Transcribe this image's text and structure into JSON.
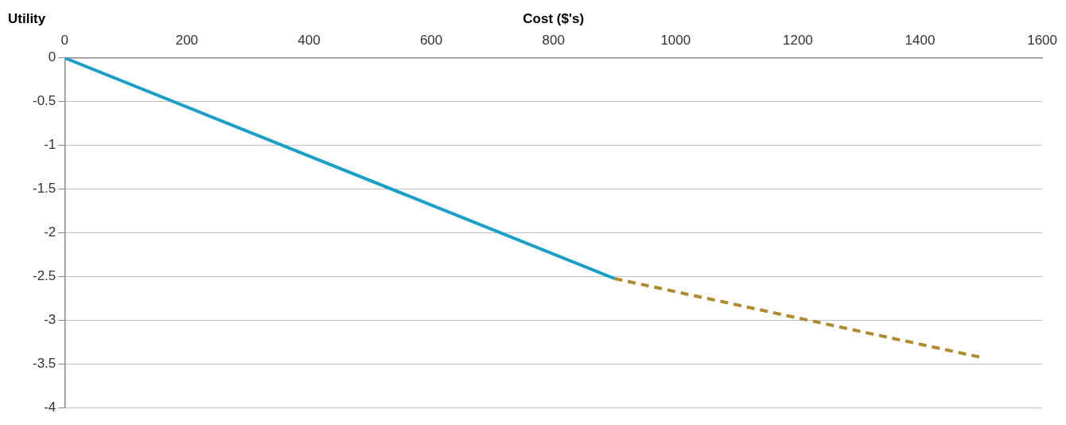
{
  "chart_data": {
    "type": "line",
    "xlabel": "Cost ($'s)",
    "ylabel": "Utility",
    "xlim": [
      0,
      1600
    ],
    "xticks": [
      0,
      200,
      400,
      600,
      800,
      1000,
      1200,
      1400,
      1600
    ],
    "ylim": [
      -4,
      0
    ],
    "yticks": [
      -4,
      -3.5,
      -3,
      -2.5,
      -2,
      -1.5,
      -1,
      -0.5,
      0
    ],
    "grid": "y",
    "legend": false,
    "marker": "none",
    "series": [
      {
        "x": [
          0,
          900
        ],
        "values": [
          0,
          -2.52
        ],
        "color": "#1a9fc9",
        "line_style": "solid"
      },
      {
        "x": [
          900,
          1500
        ],
        "values": [
          -2.52,
          -3.42
        ],
        "color": "#b08a2e",
        "line_style": "dashed"
      }
    ]
  }
}
